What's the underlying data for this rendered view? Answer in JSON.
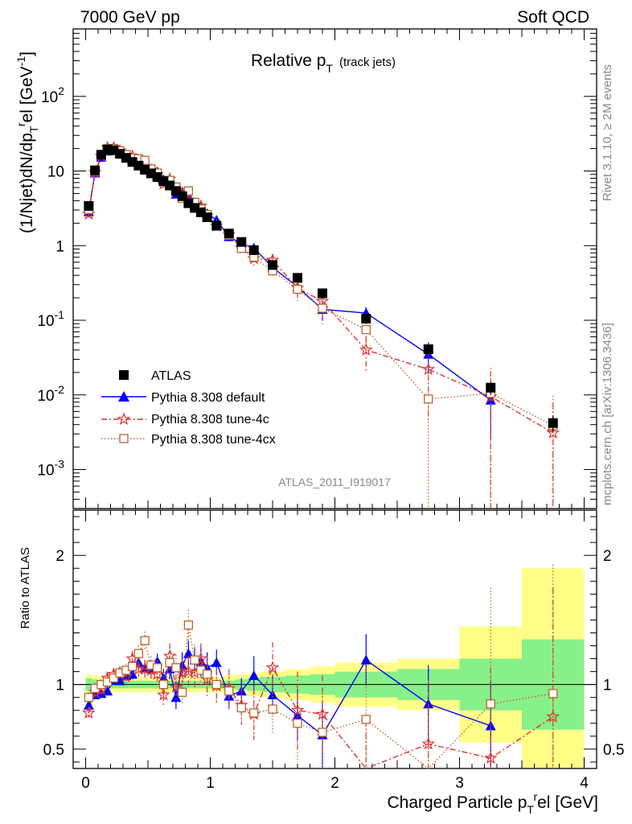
{
  "header": {
    "left": "7000 GeV pp",
    "right": "Soft QCD"
  },
  "title": {
    "main": "Relative p",
    "sub": "T",
    "suffix": "(track jets)"
  },
  "side_labels": {
    "rivet": "Rivet 3.1.10, ≥ 2M events",
    "mcplots": "mcplots.cern.ch [arXiv:1306.3436]"
  },
  "analysis_label": "ATLAS_2011_I919017",
  "axes": {
    "ylabel_top": "(1/Njet)dN/dp",
    "ylabel_top_sub": "T",
    "ylabel_top_sup": "r",
    "ylabel_top_tail": "el [GeV",
    "ylabel_top_unit_sup": "-1",
    "ylabel_top_close": "]",
    "ylabel_bottom": "Ratio to ATLAS",
    "xlabel": "Charged Particle p",
    "xlabel_sub": "T",
    "xlabel_sup": "r",
    "xlabel_tail": "el [GeV]"
  },
  "legend": [
    {
      "label": "ATLAS",
      "color": "#000000",
      "marker": "square"
    },
    {
      "label": "Pythia 8.308 default",
      "color": "#0000ff",
      "marker": "triangle",
      "dash": "solid"
    },
    {
      "label": "Pythia 8.308 tune-4c",
      "color": "#dd3333",
      "marker": "star",
      "dash": "dashdot"
    },
    {
      "label": "Pythia 8.308 tune-4cx",
      "color": "#b8642f",
      "marker": "open-square",
      "dash": "dotted"
    }
  ],
  "chart_data": {
    "type": "scatter",
    "xlim": [
      -0.1,
      4.1
    ],
    "x_ticks": [
      "0",
      "1",
      "2",
      "3",
      "4"
    ],
    "top_panel": {
      "yscale": "log",
      "ylim": [
        0.0003,
        800
      ],
      "y_ticks": [
        "10^-3",
        "10^-2",
        "10^-1",
        "1",
        "10",
        "10^2"
      ],
      "x": [
        0.025,
        0.075,
        0.125,
        0.175,
        0.225,
        0.275,
        0.325,
        0.375,
        0.425,
        0.475,
        0.525,
        0.575,
        0.625,
        0.675,
        0.725,
        0.775,
        0.825,
        0.875,
        0.925,
        0.975,
        1.05,
        1.15,
        1.25,
        1.35,
        1.5,
        1.7,
        1.9,
        2.25,
        2.75,
        3.25,
        3.75
      ],
      "series": [
        {
          "name": "ATLAS",
          "values": [
            3.4,
            10.2,
            16.5,
            19.5,
            19.0,
            17.0,
            15.0,
            13.2,
            11.8,
            10.4,
            9.3,
            8.3,
            7.3,
            6.4,
            5.4,
            4.6,
            3.7,
            3.2,
            2.8,
            2.4,
            1.85,
            1.45,
            1.12,
            0.87,
            0.55,
            0.37,
            0.23,
            0.105,
            0.041,
            0.0125,
            0.0042
          ],
          "yerr_rel": [
            0.05,
            0.04,
            0.03,
            0.03,
            0.03,
            0.03,
            0.03,
            0.03,
            0.03,
            0.03,
            0.03,
            0.03,
            0.03,
            0.03,
            0.03,
            0.03,
            0.03,
            0.03,
            0.03,
            0.03,
            0.03,
            0.03,
            0.04,
            0.05,
            0.05,
            0.06,
            0.07,
            0.1,
            0.15,
            0.2,
            0.25
          ]
        },
        {
          "name": "Pythia 8.308 default",
          "values": [
            2.85,
            9.4,
            15.3,
            18.5,
            19.6,
            17.5,
            16.1,
            14.3,
            13.8,
            11.8,
            10.4,
            9.8,
            7.7,
            7.2,
            4.9,
            5.3,
            4.6,
            3.8,
            3.3,
            2.7,
            2.2,
            1.32,
            1.06,
            0.93,
            0.51,
            0.28,
            0.14,
            0.125,
            0.035,
            0.0085,
            null
          ],
          "yerr_rel": [
            0.04,
            0.03,
            0.03,
            0.03,
            0.03,
            0.03,
            0.03,
            0.03,
            0.03,
            0.03,
            0.04,
            0.04,
            0.05,
            0.05,
            0.08,
            0.07,
            0.08,
            0.08,
            0.1,
            0.1,
            0.08,
            0.1,
            0.1,
            0.15,
            0.15,
            0.2,
            0.3,
            0.2,
            0.45,
            0.7,
            null
          ]
        },
        {
          "name": "Pythia 8.308 tune-4c",
          "values": [
            2.65,
            9.6,
            15.8,
            20.5,
            20.5,
            18.6,
            15.9,
            15.8,
            13.2,
            11.6,
            10.3,
            9.0,
            6.7,
            7.8,
            5.3,
            5.0,
            4.1,
            3.5,
            3.4,
            2.5,
            1.84,
            1.4,
            0.94,
            0.67,
            0.64,
            0.27,
            0.18,
            0.04,
            0.022,
            0.0095,
            0.0031
          ],
          "yerr_rel": [
            0.05,
            0.04,
            0.03,
            0.03,
            0.03,
            0.03,
            0.04,
            0.04,
            0.04,
            0.04,
            0.05,
            0.05,
            0.06,
            0.06,
            0.07,
            0.08,
            0.08,
            0.09,
            0.1,
            0.1,
            0.1,
            0.12,
            0.15,
            0.2,
            0.2,
            0.3,
            0.4,
            0.5,
            0.8,
            1.2,
            1.5
          ]
        },
        {
          "name": "Pythia 8.308 tune-4cx",
          "values": [
            3.05,
            9.9,
            16.5,
            19.8,
            20.0,
            18.6,
            16.6,
            15.0,
            14.6,
            13.9,
            10.7,
            9.4,
            7.3,
            7.5,
            6.1,
            4.3,
            5.4,
            3.8,
            3.1,
            2.6,
            1.86,
            1.38,
            0.92,
            0.7,
            0.46,
            0.26,
            0.145,
            0.075,
            0.0088,
            0.0105,
            0.0039
          ],
          "yerr_rel": [
            0.05,
            0.04,
            0.03,
            0.03,
            0.03,
            0.03,
            0.04,
            0.04,
            0.04,
            0.04,
            0.05,
            0.05,
            0.06,
            0.06,
            0.07,
            0.08,
            0.08,
            0.09,
            0.1,
            0.1,
            0.1,
            0.12,
            0.15,
            0.2,
            0.2,
            0.3,
            0.4,
            0.5,
            1.0,
            1.2,
            1.5
          ]
        }
      ]
    },
    "bottom_panel": {
      "ylim": [
        0.35,
        2.35
      ],
      "y_ticks": [
        "0.5",
        "1",
        "2"
      ],
      "band_edges": [
        0.0,
        0.05,
        0.1,
        0.15,
        0.2,
        0.25,
        0.3,
        0.35,
        0.4,
        0.45,
        0.5,
        0.55,
        0.6,
        0.65,
        0.7,
        0.75,
        0.8,
        0.85,
        0.9,
        0.95,
        1.0,
        1.1,
        1.2,
        1.3,
        1.4,
        1.6,
        1.8,
        2.0,
        2.5,
        3.0,
        3.5,
        4.0
      ],
      "band_inner": [
        0.05,
        0.04,
        0.03,
        0.03,
        0.03,
        0.03,
        0.03,
        0.03,
        0.03,
        0.03,
        0.03,
        0.03,
        0.03,
        0.03,
        0.03,
        0.03,
        0.03,
        0.03,
        0.03,
        0.03,
        0.03,
        0.03,
        0.04,
        0.05,
        0.06,
        0.07,
        0.08,
        0.1,
        0.12,
        0.2,
        0.35
      ],
      "band_outer": [
        0.08,
        0.07,
        0.06,
        0.06,
        0.06,
        0.06,
        0.06,
        0.06,
        0.06,
        0.06,
        0.06,
        0.06,
        0.06,
        0.06,
        0.06,
        0.06,
        0.06,
        0.06,
        0.06,
        0.06,
        0.06,
        0.07,
        0.08,
        0.09,
        0.1,
        0.12,
        0.14,
        0.17,
        0.2,
        0.45,
        0.9
      ],
      "series": [
        {
          "name": "Pythia 8.308 default",
          "values": [
            0.84,
            0.92,
            0.93,
            0.95,
            1.03,
            1.03,
            1.07,
            1.08,
            1.17,
            1.13,
            1.12,
            1.18,
            1.05,
            1.12,
            0.9,
            1.15,
            1.24,
            1.19,
            1.18,
            1.13,
            1.17,
            0.91,
            0.95,
            1.07,
            0.92,
            0.76,
            0.61,
            1.19,
            0.85,
            0.68,
            null
          ],
          "yerr": [
            0.03,
            0.03,
            0.03,
            0.03,
            0.03,
            0.03,
            0.04,
            0.04,
            0.05,
            0.05,
            0.06,
            0.06,
            0.07,
            0.08,
            0.09,
            0.1,
            0.1,
            0.1,
            0.12,
            0.12,
            0.1,
            0.1,
            0.1,
            0.15,
            0.15,
            0.2,
            0.25,
            0.2,
            0.3,
            0.35,
            null
          ]
        },
        {
          "name": "Pythia 8.308 tune-4c",
          "values": [
            0.78,
            0.94,
            0.96,
            1.05,
            1.08,
            1.09,
            1.06,
            1.2,
            1.12,
            1.12,
            1.11,
            1.08,
            0.92,
            1.22,
            0.98,
            1.09,
            1.1,
            1.09,
            1.2,
            1.04,
            0.99,
            0.97,
            0.84,
            0.77,
            1.13,
            0.8,
            0.77,
            0.32,
            0.54,
            0.43,
            0.75
          ],
          "yerr": [
            0.04,
            0.04,
            0.04,
            0.04,
            0.04,
            0.05,
            0.05,
            0.06,
            0.06,
            0.07,
            0.07,
            0.08,
            0.09,
            0.1,
            0.1,
            0.1,
            0.12,
            0.12,
            0.12,
            0.13,
            0.13,
            0.15,
            0.15,
            0.2,
            0.2,
            0.3,
            0.3,
            0.4,
            0.5,
            0.7,
            1.0
          ]
        },
        {
          "name": "Pythia 8.308 tune-4cx",
          "values": [
            0.9,
            0.97,
            1.0,
            1.02,
            1.05,
            1.09,
            1.11,
            1.14,
            1.24,
            1.34,
            1.15,
            1.13,
            1.0,
            1.17,
            1.13,
            0.94,
            1.46,
            1.19,
            1.11,
            1.08,
            1.0,
            0.95,
            0.82,
            0.78,
            0.81,
            0.7,
            0.63,
            0.73,
            0.21,
            0.85,
            0.93
          ],
          "yerr": [
            0.04,
            0.04,
            0.04,
            0.04,
            0.05,
            0.05,
            0.05,
            0.06,
            0.06,
            0.07,
            0.07,
            0.08,
            0.09,
            0.1,
            0.1,
            0.1,
            0.12,
            0.12,
            0.12,
            0.13,
            0.13,
            0.15,
            0.15,
            0.2,
            0.2,
            0.3,
            0.3,
            0.4,
            0.6,
            0.9,
            1.0
          ]
        }
      ]
    }
  }
}
